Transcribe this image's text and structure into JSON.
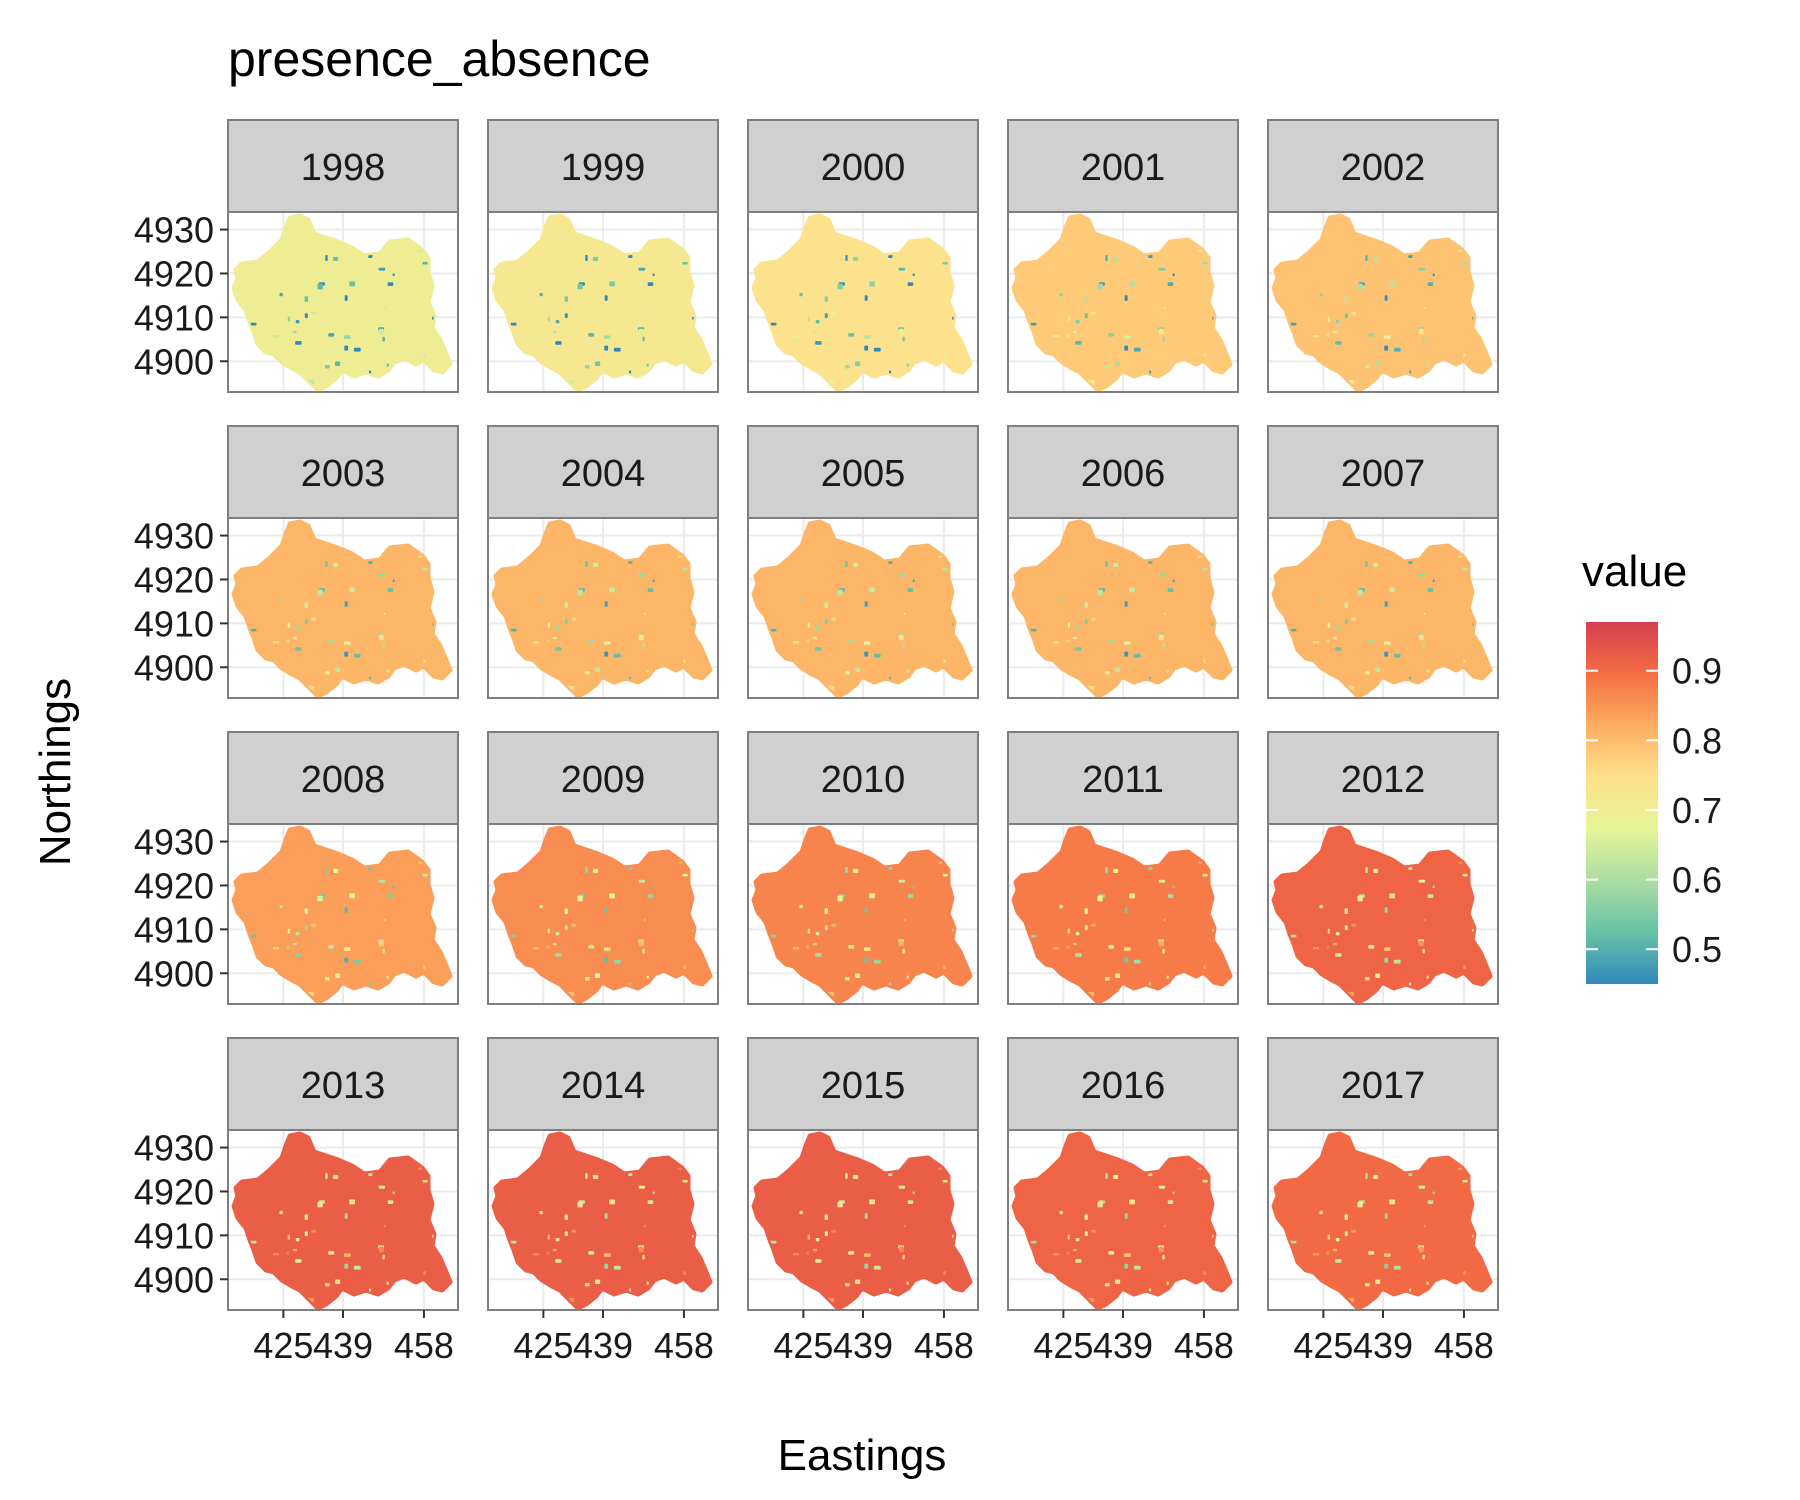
{
  "chart_data": {
    "type": "heatmap",
    "subtype": "faceted spatial point map",
    "title": "presence_absence",
    "xlabel": "Eastings",
    "ylabel": "Northings",
    "facets": [
      {
        "label": "1998",
        "mean_value": 0.7
      },
      {
        "label": "1999",
        "mean_value": 0.72
      },
      {
        "label": "2000",
        "mean_value": 0.74
      },
      {
        "label": "2001",
        "mean_value": 0.78
      },
      {
        "label": "2002",
        "mean_value": 0.79
      },
      {
        "label": "2003",
        "mean_value": 0.81
      },
      {
        "label": "2004",
        "mean_value": 0.81
      },
      {
        "label": "2005",
        "mean_value": 0.81
      },
      {
        "label": "2006",
        "mean_value": 0.81
      },
      {
        "label": "2007",
        "mean_value": 0.81
      },
      {
        "label": "2008",
        "mean_value": 0.84
      },
      {
        "label": "2009",
        "mean_value": 0.86
      },
      {
        "label": "2010",
        "mean_value": 0.87
      },
      {
        "label": "2011",
        "mean_value": 0.88
      },
      {
        "label": "2012",
        "mean_value": 0.91
      },
      {
        "label": "2013",
        "mean_value": 0.92
      },
      {
        "label": "2014",
        "mean_value": 0.92
      },
      {
        "label": "2015",
        "mean_value": 0.92
      },
      {
        "label": "2016",
        "mean_value": 0.91
      },
      {
        "label": "2017",
        "mean_value": 0.9
      }
    ],
    "x_ticks": [
      "425",
      "439",
      "458"
    ],
    "x_tick_values": [
      425,
      439,
      458
    ],
    "y_ticks": [
      "4900",
      "4910",
      "4920",
      "4930"
    ],
    "y_tick_values": [
      4900,
      4910,
      4920,
      4930
    ],
    "xlim": [
      412,
      466
    ],
    "ylim": [
      4893,
      4934
    ],
    "facet_grid": {
      "rows": 4,
      "cols": 5
    },
    "legend": {
      "title": "value",
      "placement": "right",
      "tick_labels": [
        "0.9",
        "0.8",
        "0.7",
        "0.6",
        "0.5"
      ],
      "tick_values": [
        0.9,
        0.8,
        0.7,
        0.6,
        0.5
      ],
      "range": [
        0.45,
        0.97
      ],
      "colors": [
        "#3288bd",
        "#66c2a5",
        "#abdda4",
        "#e6f598",
        "#fee08b",
        "#fdae61",
        "#f46d43",
        "#d53e4f"
      ]
    },
    "grid": true
  }
}
